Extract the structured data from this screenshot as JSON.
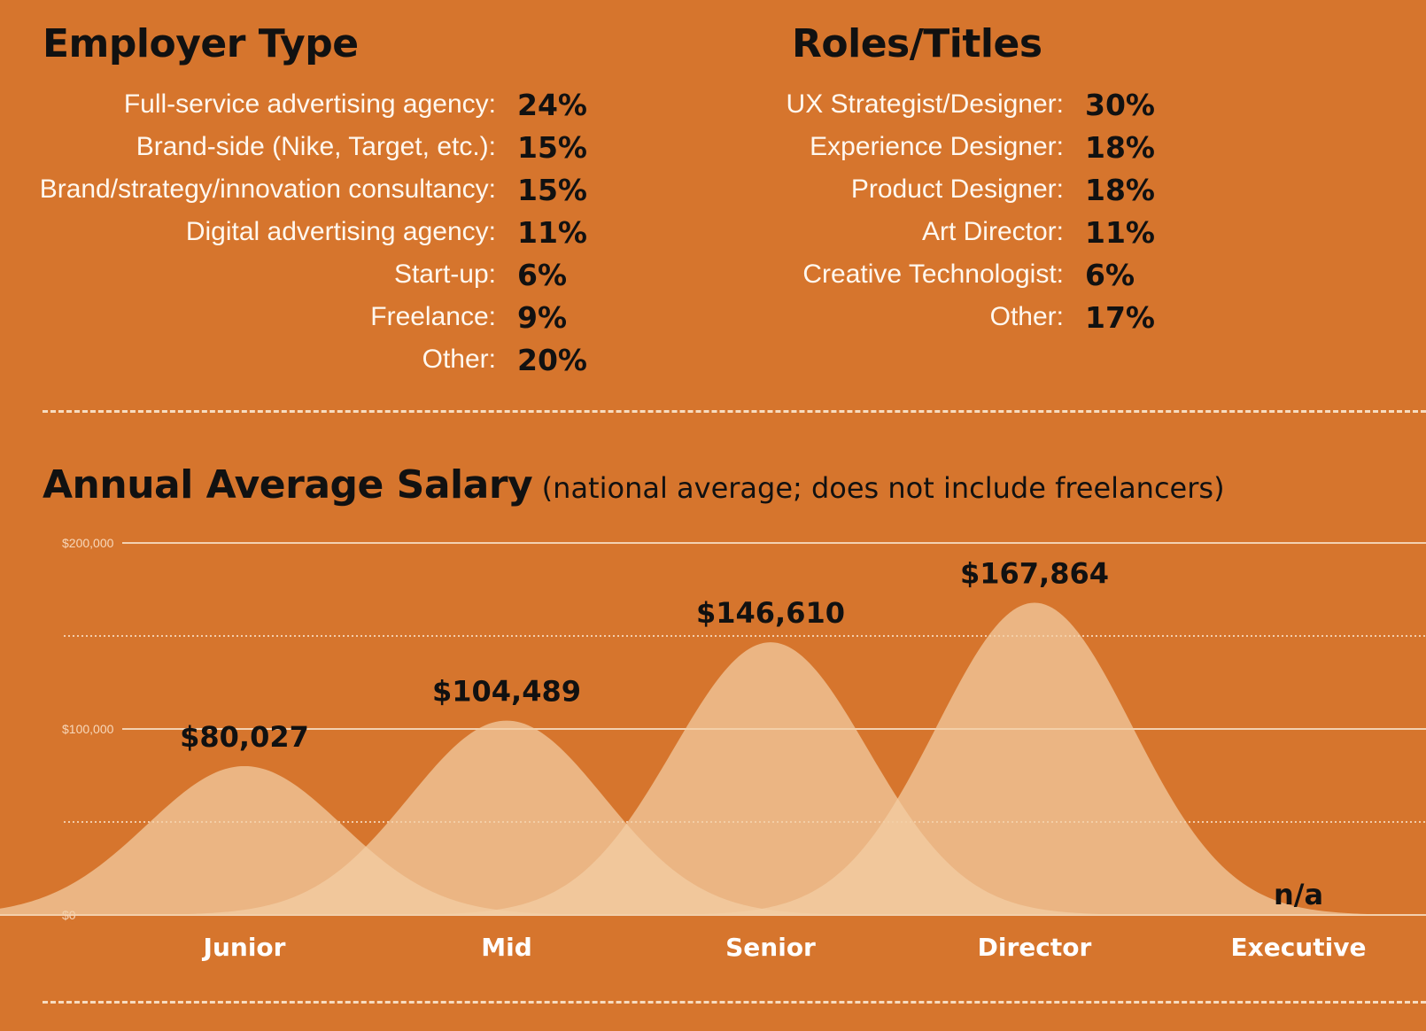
{
  "employer_type": {
    "title": "Employer Type",
    "items": [
      {
        "label": "Full-service advertising agency:",
        "value": "24%"
      },
      {
        "label": "Brand-side (Nike, Target, etc.):",
        "value": "15%"
      },
      {
        "label": "Brand/strategy/innovation consultancy:",
        "value": "15%"
      },
      {
        "label": "Digital advertising agency:",
        "value": "11%"
      },
      {
        "label": "Start-up:",
        "value": "6%"
      },
      {
        "label": "Freelance:",
        "value": "9%"
      },
      {
        "label": "Other:",
        "value": "20%"
      }
    ]
  },
  "roles_titles": {
    "title": "Roles/Titles",
    "items": [
      {
        "label": "UX Strategist/Designer:",
        "value": "30%"
      },
      {
        "label": "Experience Designer:",
        "value": "18%"
      },
      {
        "label": "Product Designer:",
        "value": "18%"
      },
      {
        "label": "Art Director:",
        "value": "11%"
      },
      {
        "label": "Creative Technologist:",
        "value": "6%"
      },
      {
        "label": "Other:",
        "value": "17%"
      }
    ]
  },
  "salary": {
    "title": "Annual Average Salary",
    "subtitle": "(national average; does not include freelancers)"
  },
  "colors": {
    "background": "#d6752d",
    "curve_fill": "#f3cfa5",
    "gridline": "#f7dcc0"
  },
  "chart_data": {
    "type": "area",
    "categories": [
      "Junior",
      "Mid",
      "Senior",
      "Director",
      "Executive"
    ],
    "values": [
      80027,
      104489,
      146610,
      167864,
      null
    ],
    "value_labels": [
      "$80,027",
      "$104,489",
      "$146,610",
      "$167,864",
      "n/a"
    ],
    "ylim": [
      0,
      200000
    ],
    "yticks": [
      {
        "value": 0,
        "label": "$0"
      },
      {
        "value": 100000,
        "label": "$100,000"
      },
      {
        "value": 200000,
        "label": "$200,000"
      }
    ],
    "minor_gridlines": [
      50000,
      150000
    ],
    "grid": true
  }
}
